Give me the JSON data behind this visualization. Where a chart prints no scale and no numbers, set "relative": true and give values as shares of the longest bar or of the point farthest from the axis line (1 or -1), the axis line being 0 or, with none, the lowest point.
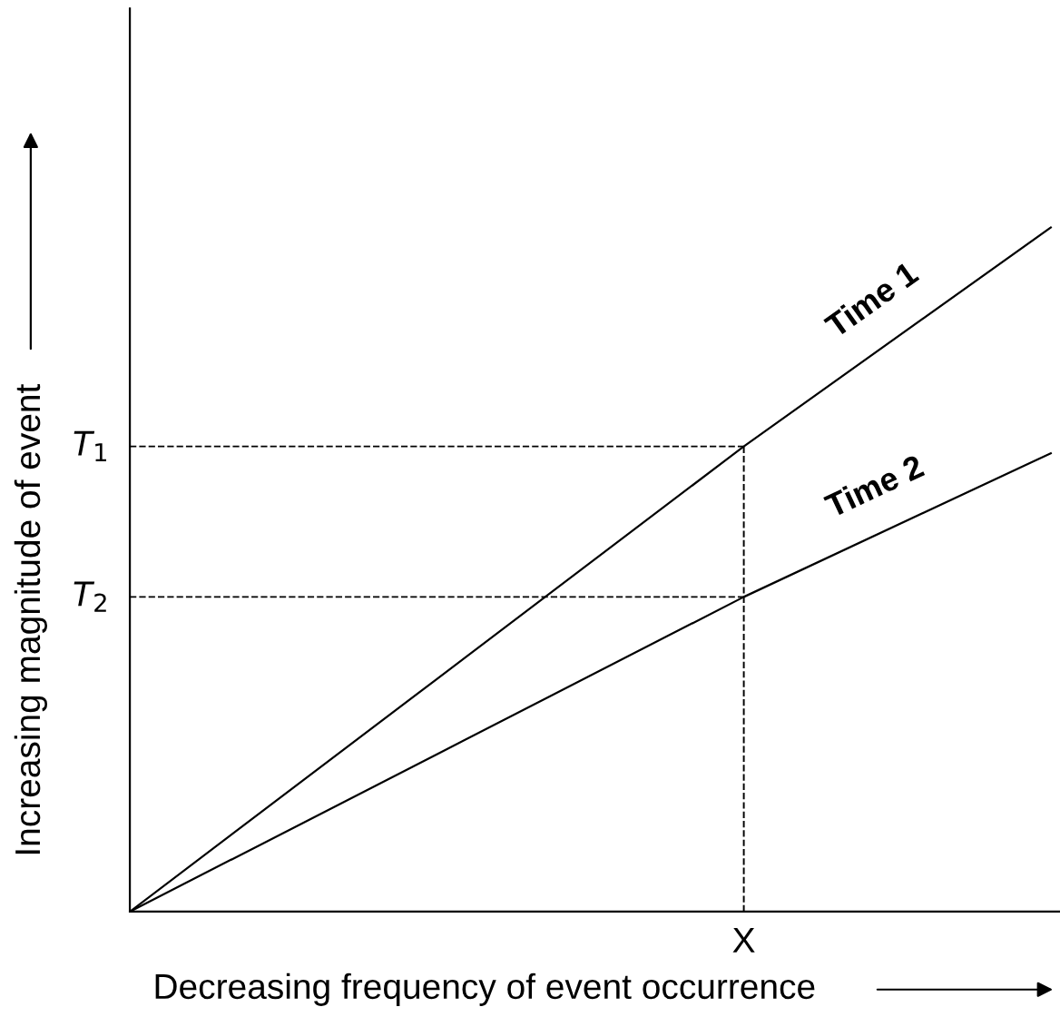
{
  "chart_data": {
    "type": "line",
    "relative": true,
    "xlabel": "Decreasing frequency of event occurrence",
    "ylabel": "Increasing magnitude of event",
    "categories": [
      null,
      null,
      null,
      null
    ],
    "series": [
      {
        "name": "Time 1",
        "color": "#000000",
        "values": [
          0,
          0.34,
          0.68,
          1
        ]
      },
      {
        "name": "Time 2",
        "color": "#000000",
        "values": [
          0,
          0.23,
          0.46,
          0.67
        ]
      }
    ],
    "ref_lines": [
      {
        "axis": "y",
        "value": 0.68,
        "label": "T$_{1}$",
        "line_style": "dashed"
      },
      {
        "axis": "y",
        "value": 0.46,
        "label": "T$_{2}$",
        "line_style": "dashed"
      }
    ],
    "annotations": [
      "X"
    ],
    "grid": false,
    "legend": false,
    "marker": "none",
    "line_style": "solid"
  }
}
